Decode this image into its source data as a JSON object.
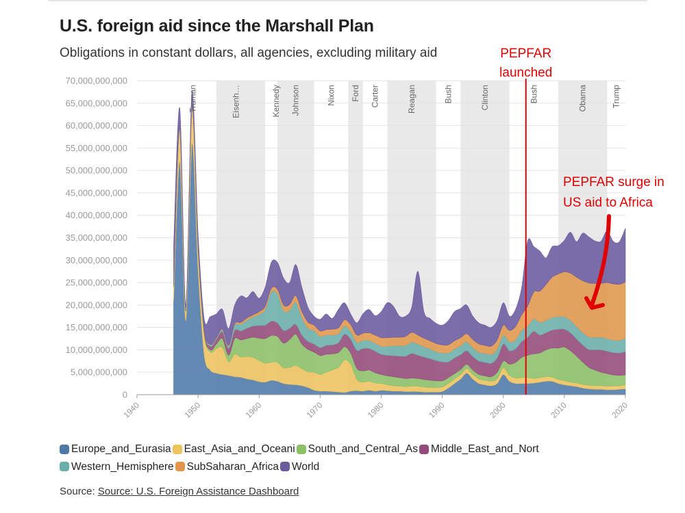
{
  "title": "U.S. foreign aid since the Marshall Plan",
  "subtitle": "Obligations in constant dollars, all agencies, excluding military aid",
  "source_label": "Source:",
  "source_link": "Source: U.S. Foreign Assistance Dashboard",
  "colors": {
    "Europe_and_Eurasia": "#4e79a7",
    "East_Asia_and_Oceani": "#edc35e",
    "South_and_Central_As": "#8cc068",
    "Middle_East_and_Nort": "#944a7a",
    "Western_Hemisphere": "#6aaeaa",
    "SubSaharan_Africa": "#e1964c",
    "World": "#6a5a9e",
    "annotation": "#e00000"
  },
  "chart_data": {
    "type": "area",
    "stacked": true,
    "title": "U.S. foreign aid since the Marshall Plan",
    "subtitle": "Obligations in constant dollars, all agencies, excluding military aid",
    "xlabel": "",
    "ylabel": "",
    "xlim": [
      1940,
      2020
    ],
    "ylim": [
      0,
      70000000000
    ],
    "x_ticks": [
      1940,
      1950,
      1960,
      1970,
      1980,
      1990,
      2000,
      2010,
      2020
    ],
    "y_ticks": [
      0,
      5000000000,
      10000000000,
      15000000000,
      20000000000,
      25000000000,
      30000000000,
      35000000000,
      40000000000,
      45000000000,
      50000000000,
      55000000000,
      60000000000,
      65000000000,
      70000000000
    ],
    "y_tick_labels": [
      "0",
      "5,000,000,000",
      "10,000,000,000",
      "15,000,000,000",
      "20,000,000,000",
      "25,000,000,000",
      "30,000,000,000",
      "35,000,000,000",
      "40,000,000,000",
      "45,000,000,000",
      "50,000,000,000",
      "55,000,000,000",
      "60,000,000,000",
      "65,000,000,000",
      "70,000,000,000"
    ],
    "x": [
      1946,
      1947,
      1948,
      1949,
      1950,
      1951,
      1952,
      1953,
      1954,
      1955,
      1956,
      1957,
      1958,
      1959,
      1960,
      1961,
      1962,
      1963,
      1964,
      1965,
      1966,
      1967,
      1968,
      1969,
      1970,
      1971,
      1972,
      1973,
      1974,
      1975,
      1976,
      1977,
      1978,
      1979,
      1980,
      1981,
      1982,
      1983,
      1984,
      1985,
      1986,
      1987,
      1988,
      1989,
      1990,
      1991,
      1992,
      1993,
      1994,
      1995,
      1996,
      1997,
      1998,
      1999,
      2000,
      2001,
      2002,
      2003,
      2004,
      2005,
      2006,
      2007,
      2008,
      2009,
      2010,
      2011,
      2012,
      2013,
      2014,
      2015,
      2016,
      2017,
      2018,
      2019,
      2020
    ],
    "series": [
      {
        "name": "Europe_and_Eurasia",
        "values": [
          21.0,
          52.0,
          16.5,
          56.0,
          28.0,
          9.0,
          5.5,
          4.8,
          4.5,
          4.3,
          4.0,
          3.9,
          3.5,
          3.3,
          2.9,
          2.8,
          3.2,
          3.0,
          2.5,
          2.3,
          2.2,
          2.0,
          1.6,
          1.0,
          0.8,
          0.8,
          0.7,
          0.6,
          0.5,
          0.8,
          0.9,
          0.8,
          1.0,
          0.8,
          1.0,
          0.9,
          0.8,
          0.8,
          0.7,
          0.7,
          0.7,
          0.6,
          0.6,
          0.6,
          0.7,
          1.5,
          2.5,
          3.5,
          4.8,
          3.5,
          2.5,
          2.2,
          2.0,
          2.5,
          4.5,
          3.0,
          2.5,
          2.5,
          2.5,
          2.6,
          2.8,
          3.0,
          3.0,
          2.5,
          2.2,
          2.0,
          1.8,
          1.5,
          1.3,
          1.2,
          1.2,
          1.1,
          1.1,
          1.2,
          1.3
        ]
      },
      {
        "name": "East_Asia_and_Oceani",
        "values": [
          3.0,
          7.0,
          2.0,
          7.5,
          4.5,
          4.5,
          4.0,
          5.5,
          6.0,
          3.0,
          5.0,
          4.5,
          5.0,
          5.0,
          4.7,
          4.2,
          4.0,
          4.2,
          3.5,
          3.8,
          4.3,
          3.8,
          3.5,
          4.0,
          3.7,
          4.2,
          4.8,
          5.5,
          7.2,
          6.0,
          2.5,
          2.0,
          2.0,
          1.8,
          1.5,
          1.3,
          1.2,
          1.1,
          1.1,
          1.2,
          1.2,
          1.1,
          1.0,
          1.0,
          1.0,
          1.0,
          1.0,
          1.0,
          1.0,
          1.0,
          1.0,
          1.0,
          1.0,
          1.0,
          1.5,
          1.3,
          1.2,
          1.3,
          1.3,
          1.0,
          1.0,
          1.0,
          0.9,
          0.9,
          0.9,
          0.8,
          0.8,
          0.8,
          0.8,
          0.8,
          0.8,
          0.8,
          0.8,
          0.8,
          0.9
        ]
      },
      {
        "name": "South_and_Central_As",
        "values": [
          0.2,
          0.3,
          0.3,
          0.3,
          0.3,
          0.4,
          0.5,
          1.0,
          2.0,
          1.5,
          3.5,
          3.8,
          4.0,
          4.5,
          5.0,
          5.5,
          6.0,
          5.8,
          5.5,
          6.2,
          7.0,
          5.5,
          5.0,
          4.5,
          4.2,
          4.0,
          3.6,
          3.3,
          3.0,
          2.5,
          2.5,
          2.5,
          2.5,
          2.3,
          2.0,
          2.0,
          2.0,
          1.9,
          1.8,
          1.8,
          1.7,
          1.7,
          1.6,
          1.5,
          1.4,
          1.3,
          1.2,
          1.1,
          1.0,
          1.0,
          1.0,
          1.0,
          1.0,
          1.5,
          1.5,
          2.5,
          3.5,
          4.5,
          5.0,
          5.5,
          5.5,
          6.0,
          6.5,
          7.0,
          7.5,
          7.0,
          6.0,
          5.0,
          4.0,
          3.5,
          3.0,
          2.8,
          2.5,
          2.3,
          2.2
        ]
      },
      {
        "name": "Middle_East_and_Nort",
        "values": [
          0.2,
          0.3,
          0.3,
          0.3,
          0.3,
          0.5,
          0.8,
          1.0,
          1.5,
          1.5,
          1.8,
          2.0,
          2.3,
          2.5,
          2.8,
          3.0,
          3.2,
          3.0,
          2.8,
          2.5,
          2.2,
          2.0,
          1.8,
          1.8,
          1.8,
          2.0,
          2.0,
          2.2,
          2.8,
          3.0,
          4.0,
          5.0,
          4.8,
          4.8,
          4.5,
          4.6,
          4.7,
          4.8,
          5.0,
          5.5,
          5.2,
          5.0,
          4.8,
          4.5,
          4.2,
          3.5,
          3.5,
          3.3,
          3.0,
          3.0,
          3.0,
          3.0,
          3.0,
          3.2,
          3.8,
          3.0,
          3.0,
          3.5,
          4.0,
          5.0,
          4.0,
          3.8,
          4.0,
          4.2,
          4.0,
          4.0,
          3.8,
          3.8,
          4.0,
          4.5,
          5.0,
          5.0,
          5.0,
          5.0,
          5.2
        ]
      },
      {
        "name": "Western_Hemisphere",
        "values": [
          0.2,
          0.2,
          0.2,
          0.2,
          0.2,
          0.2,
          0.3,
          0.3,
          0.4,
          0.5,
          1.2,
          1.5,
          1.8,
          2.0,
          2.5,
          3.5,
          6.5,
          6.5,
          4.5,
          4.0,
          5.0,
          4.0,
          3.0,
          3.0,
          2.5,
          2.3,
          2.2,
          2.0,
          1.8,
          1.8,
          1.8,
          1.8,
          1.8,
          1.8,
          1.8,
          2.0,
          2.2,
          2.3,
          2.4,
          2.5,
          2.5,
          2.3,
          2.2,
          2.0,
          2.0,
          2.0,
          2.0,
          2.0,
          2.0,
          2.0,
          2.0,
          2.0,
          2.0,
          2.0,
          2.0,
          2.0,
          2.0,
          2.5,
          2.5,
          2.8,
          2.8,
          2.8,
          2.8,
          2.8,
          2.8,
          2.8,
          2.8,
          2.8,
          2.8,
          2.8,
          2.8,
          2.8,
          2.8,
          2.8,
          3.0
        ]
      },
      {
        "name": "SubSaharan_Africa",
        "values": [
          0.1,
          0.1,
          0.1,
          0.1,
          0.1,
          0.1,
          0.1,
          0.1,
          0.2,
          0.2,
          0.3,
          0.4,
          0.5,
          0.5,
          0.6,
          0.7,
          0.8,
          1.0,
          1.2,
          1.3,
          1.4,
          1.3,
          1.3,
          1.2,
          1.2,
          1.2,
          1.3,
          1.3,
          1.4,
          1.5,
          1.6,
          1.6,
          1.7,
          1.8,
          1.9,
          1.9,
          1.9,
          1.9,
          2.0,
          2.2,
          2.0,
          1.9,
          1.8,
          1.8,
          1.8,
          1.8,
          1.8,
          1.8,
          1.8,
          1.8,
          1.8,
          1.8,
          1.8,
          2.0,
          2.2,
          2.5,
          3.0,
          3.5,
          4.5,
          6.0,
          7.0,
          8.0,
          9.0,
          9.5,
          10.0,
          10.5,
          11.0,
          11.5,
          12.0,
          12.0,
          12.0,
          12.5,
          12.5,
          12.5,
          12.5
        ]
      },
      {
        "name": "World",
        "values": [
          8.8,
          4.0,
          0.6,
          3.0,
          2.6,
          2.3,
          6.2,
          5.3,
          4.4,
          3.7,
          4.2,
          5.9,
          4.5,
          5.2,
          3.0,
          4.3,
          5.8,
          6.0,
          6.0,
          4.9,
          6.9,
          5.4,
          3.3,
          2.0,
          2.6,
          3.5,
          2.4,
          4.1,
          3.8,
          2.4,
          2.7,
          4.3,
          5.2,
          4.3,
          5.8,
          7.8,
          6.9,
          4.7,
          4.5,
          5.6,
          14.2,
          5.9,
          5.0,
          4.5,
          4.4,
          5.4,
          6.5,
          6.5,
          6.4,
          5.2,
          4.7,
          4.5,
          4.2,
          4.3,
          5.0,
          3.2,
          3.8,
          6.0,
          14.5,
          10.1,
          8.9,
          5.9,
          6.8,
          6.3,
          7.0,
          9.1,
          7.9,
          10.6,
          10.3,
          9.5,
          9.4,
          11.5,
          9.5,
          9.5,
          12.0
        ]
      }
    ],
    "presidents": [
      {
        "name": "Truman",
        "start": 1945.3,
        "end": 1953.0,
        "shaded": false
      },
      {
        "name": "Eisenh…",
        "start": 1953.0,
        "end": 1961.0,
        "shaded": true
      },
      {
        "name": "Kennedy",
        "start": 1961.0,
        "end": 1963.0,
        "shaded": false
      },
      {
        "name": "Johnson",
        "start": 1963.0,
        "end": 1969.0,
        "shaded": true
      },
      {
        "name": "Nixon",
        "start": 1969.0,
        "end": 1974.6,
        "shaded": false
      },
      {
        "name": "Ford",
        "start": 1974.6,
        "end": 1977.0,
        "shaded": true
      },
      {
        "name": "Carter",
        "start": 1977.0,
        "end": 1981.0,
        "shaded": false
      },
      {
        "name": "Reagan",
        "start": 1981.0,
        "end": 1989.0,
        "shaded": true
      },
      {
        "name": "Bush",
        "start": 1989.0,
        "end": 1993.0,
        "shaded": false
      },
      {
        "name": "Clinton",
        "start": 1993.0,
        "end": 2001.0,
        "shaded": true
      },
      {
        "name": "Bush",
        "start": 2001.0,
        "end": 2009.0,
        "shaded": false
      },
      {
        "name": "Obama",
        "start": 2009.0,
        "end": 2017.0,
        "shaded": true
      },
      {
        "name": "Trump",
        "start": 2017.0,
        "end": 2020.0,
        "shaded": false
      }
    ],
    "annotations": {
      "pepfar_year": 2003.7,
      "launch_line1": "PEPFAR",
      "launch_line2": "launched",
      "surge_line1": "PEPFAR surge in",
      "surge_line2": "US aid to Africa"
    },
    "legend": [
      "Europe_and_Eurasia",
      "East_Asia_and_Oceani",
      "South_and_Central_As",
      "Middle_East_and_Nort",
      "Western_Hemisphere",
      "SubSaharan_Africa",
      "World"
    ]
  }
}
